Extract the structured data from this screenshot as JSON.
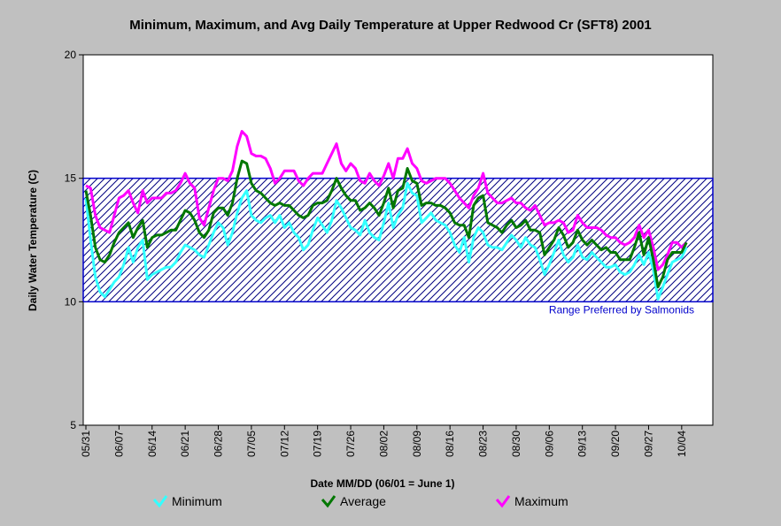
{
  "chart_data": {
    "type": "line",
    "title": "Minimum, Maximum, and Avg Daily Temperature at  Upper Redwood Cr (SFT8) 2001",
    "y_label": "Daily Water Temperature (C)",
    "x_label": "Date MM/DD (06/01 = June 1)",
    "categories": [
      "05/31",
      null,
      null,
      null,
      null,
      null,
      null,
      "06/07",
      null,
      null,
      null,
      null,
      null,
      null,
      "06/14",
      null,
      null,
      null,
      null,
      null,
      null,
      "06/21",
      null,
      null,
      null,
      null,
      null,
      null,
      "06/28",
      null,
      null,
      null,
      null,
      null,
      null,
      "07/05",
      null,
      null,
      null,
      null,
      null,
      null,
      "07/12",
      null,
      null,
      null,
      null,
      null,
      null,
      "07/19",
      null,
      null,
      null,
      null,
      null,
      null,
      "07/26",
      null,
      null,
      null,
      null,
      null,
      null,
      "08/02",
      null,
      null,
      null,
      null,
      null,
      null,
      "08/09",
      null,
      null,
      null,
      null,
      null,
      null,
      "08/16",
      null,
      null,
      null,
      null,
      null,
      null,
      "08/23",
      null,
      null,
      null,
      null,
      null,
      null,
      "08/30",
      null,
      null,
      null,
      null,
      null,
      null,
      "09/06",
      null,
      null,
      null,
      null,
      null,
      null,
      "09/13",
      null,
      null,
      null,
      null,
      null,
      null,
      "09/20",
      null,
      null,
      null,
      null,
      null,
      null,
      "09/27",
      null,
      null,
      null,
      null,
      null,
      null,
      "10/04",
      null
    ],
    "series": [
      {
        "name": "Minimum",
        "color": "#33ffff",
        "values": [
          14.2,
          12.5,
          11,
          10.4,
          10.2,
          10.5,
          10.8,
          11,
          11.5,
          12.2,
          11.6,
          12.2,
          12.5,
          10.9,
          11.1,
          11.2,
          11.3,
          11.4,
          11.4,
          11.6,
          12,
          12.3,
          12.2,
          12.1,
          11.9,
          11.8,
          12.3,
          12.8,
          13.2,
          13,
          12.3,
          12.8,
          13.6,
          14.2,
          14.5,
          13.5,
          13.3,
          13.2,
          13.4,
          13.5,
          13.2,
          13.5,
          13,
          13.2,
          12.8,
          12.6,
          12.1,
          12.3,
          12.9,
          13.4,
          13.1,
          12.8,
          13.3,
          14.1,
          13.8,
          13.4,
          13,
          12.9,
          12.7,
          13.3,
          12.8,
          12.6,
          12.5,
          13.2,
          14,
          13,
          13.5,
          13.8,
          14.8,
          14.4,
          14.3,
          13.2,
          13.4,
          13.6,
          13.3,
          13.2,
          13.1,
          12.8,
          12.3,
          12,
          12.6,
          11.6,
          12.6,
          13,
          12.8,
          12.3,
          12.2,
          12.2,
          12.1,
          12.4,
          12.7,
          12.5,
          12.2,
          12.6,
          12.3,
          12.2,
          11.7,
          11.1,
          11.5,
          12,
          12.5,
          11.9,
          11.6,
          11.8,
          12.3,
          11.8,
          11.7,
          12,
          11.8,
          11.6,
          11.4,
          11.4,
          11.5,
          11.2,
          11.1,
          11.2,
          11.5,
          11.9,
          11.5,
          12,
          11.3,
          10.1,
          10.6,
          11.1,
          11.6,
          11.7,
          11.8,
          12.2
        ]
      },
      {
        "name": "Average",
        "color": "#007700",
        "values": [
          14.5,
          13.5,
          12.2,
          11.7,
          11.6,
          11.9,
          12.4,
          12.8,
          13,
          13.2,
          12.6,
          13,
          13.3,
          12.2,
          12.6,
          12.7,
          12.7,
          12.8,
          12.9,
          12.9,
          13.3,
          13.7,
          13.6,
          13.3,
          12.8,
          12.6,
          12.9,
          13.6,
          13.8,
          13.8,
          13.5,
          14,
          15,
          15.7,
          15.6,
          14.8,
          14.5,
          14.4,
          14.2,
          14,
          13.9,
          14,
          13.9,
          13.9,
          13.7,
          13.5,
          13.4,
          13.5,
          13.9,
          14,
          14,
          14.1,
          14.5,
          15,
          14.6,
          14.3,
          14.1,
          14.1,
          13.7,
          13.8,
          14,
          13.8,
          13.5,
          14,
          14.6,
          13.8,
          14.5,
          14.6,
          15.4,
          14.9,
          14.8,
          13.9,
          14,
          14,
          13.9,
          13.9,
          13.8,
          13.6,
          13.2,
          13.1,
          13.1,
          12.6,
          13.9,
          14.2,
          14.3,
          13.2,
          13.1,
          13,
          12.8,
          13.1,
          13.3,
          13,
          13.1,
          13.3,
          12.9,
          12.9,
          12.8,
          11.9,
          12.2,
          12.5,
          13,
          12.7,
          12.2,
          12.4,
          12.9,
          12.5,
          12.3,
          12.5,
          12.3,
          12.1,
          12.2,
          12,
          12,
          11.7,
          11.7,
          11.7,
          12.2,
          12.8,
          11.9,
          12.6,
          11.7,
          10.6,
          11,
          11.7,
          12,
          12,
          12,
          12.4
        ]
      },
      {
        "name": "Maximum",
        "color": "#ff00ff",
        "values": [
          14.7,
          14.6,
          13.5,
          13,
          12.9,
          12.8,
          13.5,
          14.2,
          14.3,
          14.5,
          14,
          13.6,
          14.5,
          14,
          14.2,
          14.2,
          14.2,
          14.4,
          14.4,
          14.5,
          14.8,
          15.2,
          14.8,
          14.6,
          13.4,
          13.1,
          13.8,
          14.5,
          15,
          15,
          14.9,
          15.3,
          16.3,
          16.9,
          16.7,
          16,
          15.9,
          15.9,
          15.8,
          15.4,
          14.8,
          15,
          15.3,
          15.3,
          15.3,
          14.9,
          14.7,
          15,
          15.2,
          15.2,
          15.2,
          15.6,
          16,
          16.4,
          15.6,
          15.3,
          15.6,
          15.4,
          14.9,
          14.8,
          15.2,
          14.9,
          14.7,
          15.1,
          15.6,
          15,
          15.8,
          15.8,
          16.2,
          15.6,
          15.4,
          14.9,
          14.8,
          14.9,
          15,
          15,
          15,
          14.8,
          14.5,
          14.2,
          14,
          13.8,
          14.3,
          14.6,
          15.2,
          14.4,
          14.2,
          14,
          14,
          14.1,
          14.2,
          14,
          14,
          13.8,
          13.7,
          13.9,
          13.5,
          13.1,
          13.2,
          13.2,
          13.3,
          13.2,
          12.8,
          12.9,
          13.5,
          13.2,
          13,
          13,
          13,
          12.9,
          12.7,
          12.6,
          12.6,
          12.4,
          12.3,
          12.4,
          12.6,
          13.1,
          12.6,
          12.9,
          12.2,
          11.3,
          11.5,
          11.9,
          12.4,
          12.4,
          12.2,
          12.4
        ]
      }
    ],
    "ylim": [
      5,
      20
    ],
    "yticks": [
      5,
      10,
      15,
      20
    ],
    "band": {
      "range": [
        10,
        15
      ],
      "label": "Range Preferred by Salmonids",
      "color": "#0000cc"
    }
  }
}
